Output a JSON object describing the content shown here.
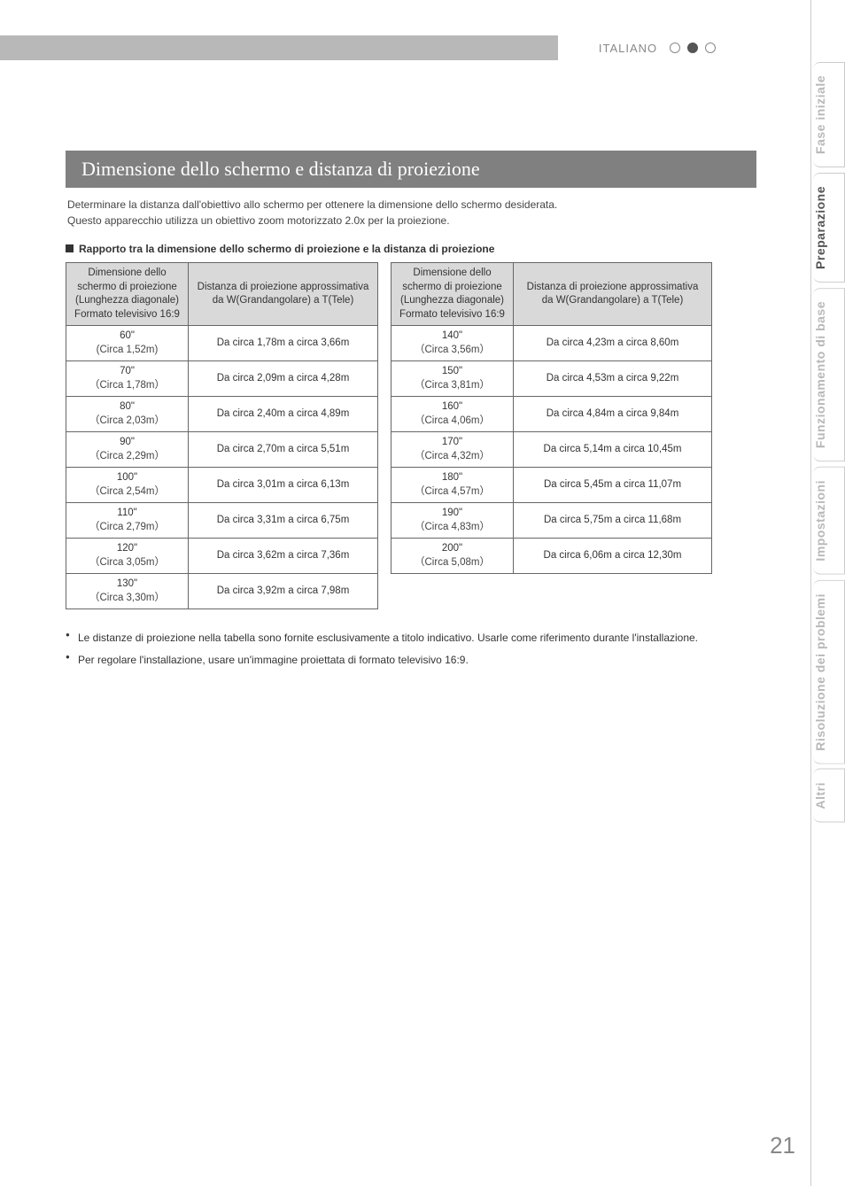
{
  "language_label": "ITALIANO",
  "sidebar_tabs": [
    {
      "label": "Fase iniziale",
      "active": false
    },
    {
      "label": "Preparazione",
      "active": true
    },
    {
      "label": "Funzionamento di base",
      "active": false
    },
    {
      "label": "Impostazioni",
      "active": false
    },
    {
      "label": "Risoluzione dei problemi",
      "active": false
    },
    {
      "label": "Altri",
      "active": false
    }
  ],
  "heading": "Dimensione dello schermo e distanza di proiezione",
  "intro_lines": [
    "Determinare la distanza dall'obiettivo allo schermo per ottenere la dimensione dello schermo desiderata.",
    "Questo apparecchio utilizza un obiettivo zoom motorizzato 2.0x per la proiezione."
  ],
  "subheading": "Rapporto tra la dimensione dello schermo di proiezione e la distanza di proiezione",
  "table_headers": {
    "size": "Dimensione dello schermo di proiezione\n(Lunghezza diagonale)\nFormato televisivo 16:9",
    "dist1": "Distanza di proiezione approssimativa\nda W(Grandangolare) a T(Tele)",
    "dist2": "Distanza di proiezione approssimativa\nda W(Grandangolare) a T(Tele)"
  },
  "table_left": [
    {
      "size": "60\"",
      "circa": "(Circa 1,52m)",
      "dist": "Da circa 1,78m a circa 3,66m"
    },
    {
      "size": "70\"",
      "circa": "（Circa 1,78m）",
      "dist": "Da circa 2,09m a circa 4,28m"
    },
    {
      "size": "80\"",
      "circa": "（Circa 2,03m）",
      "dist": "Da circa 2,40m a circa 4,89m"
    },
    {
      "size": "90\"",
      "circa": "（Circa 2,29m）",
      "dist": "Da circa 2,70m a circa 5,51m"
    },
    {
      "size": "100\"",
      "circa": "（Circa 2,54m）",
      "dist": "Da circa 3,01m a circa 6,13m"
    },
    {
      "size": "110\"",
      "circa": "（Circa 2,79m）",
      "dist": "Da circa 3,31m a circa 6,75m"
    },
    {
      "size": "120\"",
      "circa": "（Circa 3,05m）",
      "dist": "Da circa 3,62m a circa 7,36m"
    },
    {
      "size": "130\"",
      "circa": "（Circa 3,30m）",
      "dist": "Da circa 3,92m a circa 7,98m"
    }
  ],
  "table_right": [
    {
      "size": "140\"",
      "circa": "（Circa 3,56m）",
      "dist": "Da circa 4,23m a circa 8,60m"
    },
    {
      "size": "150\"",
      "circa": "（Circa 3,81m）",
      "dist": "Da circa 4,53m a circa 9,22m"
    },
    {
      "size": "160\"",
      "circa": "（Circa 4,06m）",
      "dist": "Da circa 4,84m a circa 9,84m"
    },
    {
      "size": "170\"",
      "circa": "（Circa 4,32m）",
      "dist": "Da circa 5,14m a circa 10,45m"
    },
    {
      "size": "180\"",
      "circa": "（Circa 4,57m）",
      "dist": "Da circa 5,45m a circa 11,07m"
    },
    {
      "size": "190\"",
      "circa": "（Circa 4,83m）",
      "dist": "Da circa 5,75m a circa 11,68m"
    },
    {
      "size": "200\"",
      "circa": "（Circa 5,08m）",
      "dist": "Da circa 6,06m a circa 12,30m"
    }
  ],
  "notes": [
    "Le distanze di proiezione nella tabella sono fornite esclusivamente a titolo indicativo. Usarle come riferimento durante l'installazione.",
    "Per regolare l'installazione, usare un'immagine proiettata di formato televisivo 16:9."
  ],
  "page_number": "21",
  "colors": {
    "heading_bg": "#808080",
    "tab_active": "#555555",
    "tab_inactive": "#b8b8b8",
    "th_bg": "#d9d9d9"
  }
}
